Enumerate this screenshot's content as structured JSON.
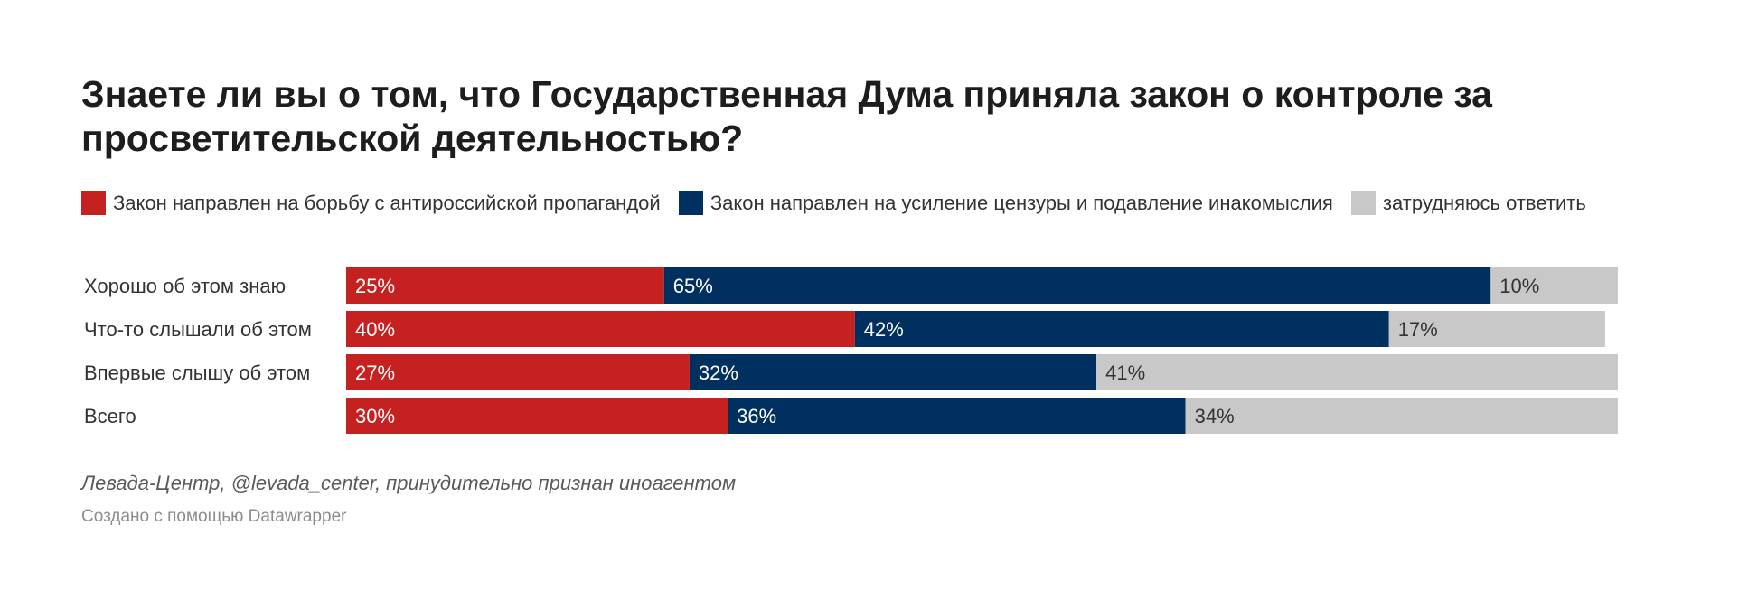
{
  "title": "Знаете ли вы о том, что Государственная Дума приняла закон о контроле за просветительской деятельностью?",
  "source": "Левада-Центр, @levada_center, принудительно признан иноагентом",
  "credit": "Создано с помощью Datawrapper",
  "colors": {
    "red": "#c62121",
    "blue": "#00305f",
    "gray": "#c8c8c8"
  },
  "chart_data": {
    "type": "bar",
    "orientation": "horizontal",
    "stacked": true,
    "legend_position": "top",
    "categories": [
      "Хорошо об этом знаю",
      "Что-то слышали об этом",
      "Впервые слышу об этом",
      "Всего"
    ],
    "xlim": [
      0,
      100
    ],
    "series": [
      {
        "name": "Закон направлен на борьбу с антироссийской пропагандой",
        "color": "#c62121",
        "label_color": "#ffffff",
        "values": [
          25,
          40,
          27,
          30
        ]
      },
      {
        "name": "Закон направлен на усиление цензуры и подавление инакомыслия",
        "color": "#00305f",
        "label_color": "#ffffff",
        "values": [
          65,
          42,
          32,
          36
        ]
      },
      {
        "name": "затрудняюсь ответить",
        "color": "#c8c8c8",
        "label_color": "#333333",
        "values": [
          10,
          17,
          41,
          34
        ]
      }
    ]
  }
}
